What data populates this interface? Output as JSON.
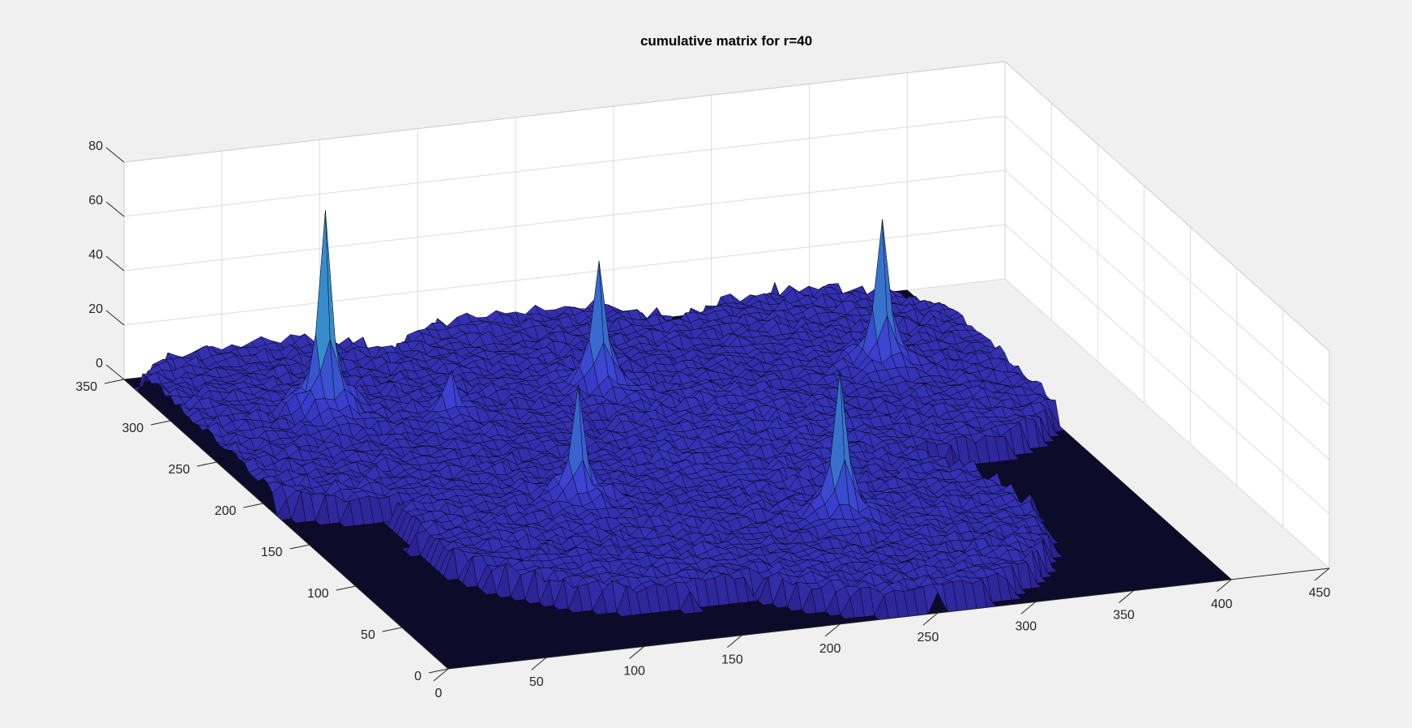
{
  "chart_data": {
    "type": "surface",
    "title": "cumulative matrix for r=40",
    "xlabel": "",
    "ylabel": "",
    "zlabel": "",
    "xlim": [
      0,
      450
    ],
    "ylim": [
      0,
      350
    ],
    "zlim": [
      0,
      80
    ],
    "x_ticks": [
      "0",
      "50",
      "100",
      "150",
      "200",
      "250",
      "300",
      "350",
      "400",
      "450"
    ],
    "y_ticks": [
      "0",
      "50",
      "100",
      "150",
      "200",
      "250",
      "300",
      "350"
    ],
    "z_ticks": [
      "0",
      "20",
      "40",
      "60",
      "80"
    ],
    "grid": true,
    "colormap": "parula-dark",
    "colors": {
      "floor": "#0d0b2a",
      "surface_low": "#2a1f8a",
      "surface_mid": "#3b3fd0",
      "surface_high": "#35b7c9",
      "edge": "#000000"
    },
    "plateaus": [
      {
        "center": [
          60,
          260
        ],
        "radius": 95,
        "height": 5
      },
      {
        "center": [
          200,
          260
        ],
        "radius": 100,
        "height": 5
      },
      {
        "center": [
          330,
          250
        ],
        "radius": 95,
        "height": 5
      },
      {
        "center": [
          140,
          130
        ],
        "radius": 95,
        "height": 5
      },
      {
        "center": [
          250,
          90
        ],
        "radius": 90,
        "height": 5
      },
      {
        "center": [
          240,
          190
        ],
        "radius": 60,
        "height": 6
      }
    ],
    "peaks": [
      {
        "x": 65,
        "y": 270,
        "z": 58
      },
      {
        "x": 200,
        "y": 260,
        "z": 38
      },
      {
        "x": 340,
        "y": 250,
        "z": 42
      },
      {
        "x": 135,
        "y": 145,
        "z": 32
      },
      {
        "x": 245,
        "y": 95,
        "z": 42
      },
      {
        "x": 120,
        "y": 250,
        "z": 12
      }
    ]
  }
}
